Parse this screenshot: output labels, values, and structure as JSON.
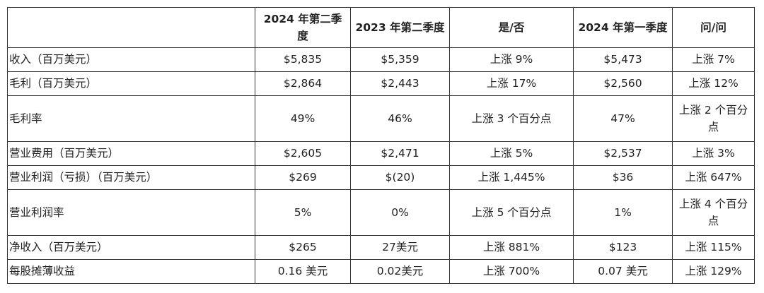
{
  "table": {
    "header": [
      "2024 年第二季度",
      "2023 年第二季度",
      "是/否",
      "2024 年第一季度",
      "问/问"
    ],
    "rows": [
      [
        "收入（百万美元）",
        "$5,835",
        "$5,359",
        "上涨 9%",
        "$5,473",
        "上涨 7%"
      ],
      [
        "毛利（百万美元）",
        "$2,864",
        "$2,443",
        "上涨 17%",
        "$2,560",
        "上涨 12%"
      ],
      [
        "毛利率",
        "49%",
        "46%",
        "上涨 3 个百分点",
        "47%",
        "上涨 2 个百分点"
      ],
      [
        "营业费用（百万美元）",
        "$2,605",
        "$2,471",
        "上涨 5%",
        "$2,537",
        "上涨 3%"
      ],
      [
        "营业利润（亏损）（百万美元）",
        "$269",
        "$(20)",
        "上涨 1,445%",
        "$36",
        "上涨 647%"
      ],
      [
        "营业利润率",
        "5%",
        "0%",
        "上涨 5 个百分点",
        "1%",
        "上涨 4 个百分点"
      ],
      [
        "净收入（百万美元）",
        "$265",
        "27美元",
        "上涨 881%",
        "$123",
        "上涨 115%"
      ],
      [
        "每股摊薄收益",
        "0.16 美元",
        "0.02美元",
        "上涨 700%",
        "0.07 美元",
        "上涨 129%"
      ]
    ]
  }
}
